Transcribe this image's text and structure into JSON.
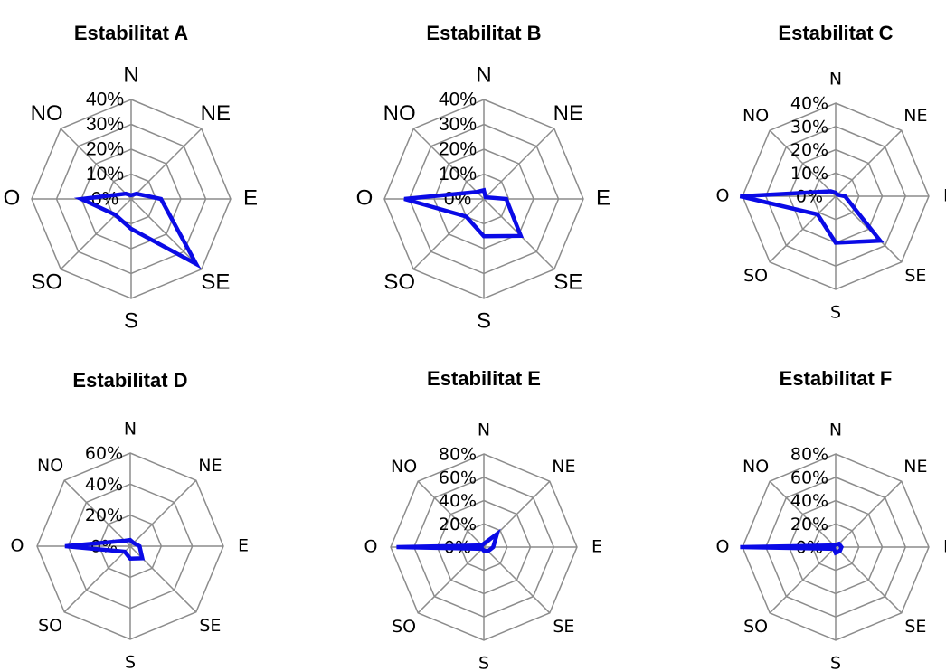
{
  "chart_data": [
    {
      "type": "radar",
      "title": "Estabilitat A",
      "categories": [
        "N",
        "NE",
        "E",
        "SE",
        "S",
        "SO",
        "O",
        "NO"
      ],
      "tick_labels": [
        "0%",
        "10%",
        "20%",
        "30%",
        "40%"
      ],
      "rmax": 40,
      "series": [
        {
          "values": [
            1.5,
            3,
            12,
            37,
            12,
            9,
            20,
            3
          ]
        }
      ],
      "line_color": "#0a0ae6"
    },
    {
      "type": "radar",
      "title": "Estabilitat B",
      "categories": [
        "N",
        "NE",
        "E",
        "SE",
        "S",
        "SO",
        "O",
        "NO"
      ],
      "tick_labels": [
        "0%",
        "10%",
        "20%",
        "30%",
        "40%"
      ],
      "rmax": 40,
      "series": [
        {
          "values": [
            3.5,
            1,
            9,
            21,
            15,
            10,
            32,
            4
          ]
        }
      ],
      "line_color": "#0a0ae6"
    },
    {
      "type": "radar",
      "title": "Estabilitat C",
      "categories": [
        "N",
        "NE",
        "E",
        "SE",
        "S",
        "SO",
        "O",
        "NO"
      ],
      "tick_labels": [
        "0%",
        "10%",
        "20%",
        "30%",
        "40%"
      ],
      "rmax": 40,
      "series": [
        {
          "values": [
            1.5,
            1,
            4,
            27,
            20,
            11,
            41,
            3
          ]
        }
      ],
      "line_color": "#0a0ae6"
    },
    {
      "type": "radar",
      "title": "Estabilitat D",
      "categories": [
        "N",
        "NE",
        "E",
        "SE",
        "S",
        "SO",
        "O",
        "NO"
      ],
      "tick_labels": [
        "0%",
        "20%",
        "40%",
        "60%"
      ],
      "rmax": 60,
      "series": [
        {
          "values": [
            4,
            3,
            6,
            11,
            8,
            5,
            42,
            5
          ]
        }
      ],
      "line_color": "#0a0ae6"
    },
    {
      "type": "radar",
      "title": "Estabilitat E",
      "categories": [
        "N",
        "NE",
        "E",
        "SE",
        "S",
        "SO",
        "O",
        "NO"
      ],
      "tick_labels": [
        "0%",
        "20%",
        "40%",
        "60%",
        "80%"
      ],
      "rmax": 80,
      "series": [
        {
          "values": [
            3,
            16,
            8,
            5,
            3,
            2,
            75,
            2
          ]
        }
      ],
      "line_color": "#0a0ae6"
    },
    {
      "type": "radar",
      "title": "Estabilitat F",
      "categories": [
        "N",
        "NE",
        "E",
        "SE",
        "S",
        "SO",
        "O",
        "NO"
      ],
      "tick_labels": [
        "0%",
        "20%",
        "40%",
        "60%",
        "80%"
      ],
      "rmax": 80,
      "series": [
        {
          "values": [
            2,
            4,
            5,
            5,
            5,
            2,
            82,
            2
          ]
        }
      ],
      "line_color": "#0a0ae6"
    }
  ]
}
